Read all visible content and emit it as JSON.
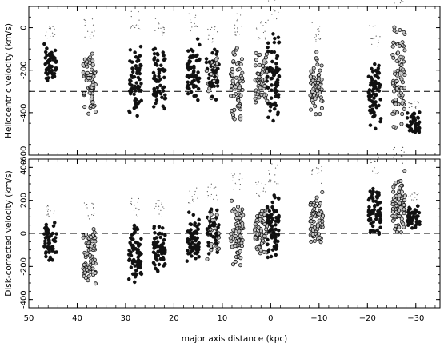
{
  "chart_data": [
    {
      "type": "scatter",
      "panel": "top",
      "ylabel": "Heliocentric velocity (km/s)",
      "xlim": [
        50,
        -35
      ],
      "ylim": [
        -600,
        100
      ],
      "y_ticks": [
        0,
        -200,
        -400,
        -600
      ],
      "y_tick_labels": [
        "0",
        "-200",
        "-400",
        "-600"
      ],
      "reference_line": {
        "y": -300,
        "style": "dashed"
      },
      "groups": [
        {
          "x": 45.5,
          "y_range": [
            -300,
            -50
          ],
          "marker": "filled"
        },
        {
          "x": 37.5,
          "y_range": [
            -450,
            -50
          ],
          "marker": "open"
        },
        {
          "x": 28.0,
          "y_range": [
            -470,
            -30
          ],
          "marker": "filled"
        },
        {
          "x": 23.0,
          "y_range": [
            -430,
            -50
          ],
          "marker": "filled"
        },
        {
          "x": 16.0,
          "y_range": [
            -380,
            -20
          ],
          "marker": "filled"
        },
        {
          "x": 12.0,
          "y_range": [
            -370,
            -70
          ],
          "marker": "mixed"
        },
        {
          "x": 7.0,
          "y_range": [
            -480,
            -40
          ],
          "marker": "open"
        },
        {
          "x": 2.0,
          "y_range": [
            -420,
            -60
          ],
          "marker": "open"
        },
        {
          "x": -0.5,
          "y_range": [
            -520,
            30
          ],
          "marker": "filled"
        },
        {
          "x": -9.5,
          "y_range": [
            -470,
            -70
          ],
          "marker": "open"
        },
        {
          "x": -21.5,
          "y_range": [
            -560,
            -100
          ],
          "marker": "filled"
        },
        {
          "x": -26.5,
          "y_range": [
            -540,
            80
          ],
          "marker": "open"
        },
        {
          "x": -29.5,
          "y_range": [
            -520,
            -380
          ],
          "marker": "filled"
        }
      ]
    },
    {
      "type": "scatter",
      "panel": "bottom",
      "ylabel": "Disk-corrected velocity (km/s)",
      "xlabel": "major axis distance (kpc)",
      "xlim": [
        50,
        -35
      ],
      "ylim": [
        -450,
        450
      ],
      "x_ticks": [
        50,
        40,
        30,
        20,
        10,
        0,
        -10,
        -20,
        -30
      ],
      "x_tick_labels": [
        "50",
        "40",
        "30",
        "20",
        "10",
        "0",
        "−10",
        "−20",
        "−30"
      ],
      "y_ticks": [
        400,
        200,
        0,
        -200,
        -400
      ],
      "y_tick_labels": [
        "400",
        "200",
        "0",
        "-200",
        "-400"
      ],
      "reference_line": {
        "y": 0,
        "style": "dashed"
      },
      "groups": [
        {
          "x": 45.5,
          "y_range": [
            -200,
            100
          ],
          "marker": "filled"
        },
        {
          "x": 37.5,
          "y_range": [
            -350,
            80
          ],
          "marker": "open"
        },
        {
          "x": 28.0,
          "y_range": [
            -370,
            100
          ],
          "marker": "filled"
        },
        {
          "x": 23.0,
          "y_range": [
            -300,
            100
          ],
          "marker": "filled"
        },
        {
          "x": 16.0,
          "y_range": [
            -220,
            180
          ],
          "marker": "filled"
        },
        {
          "x": 12.0,
          "y_range": [
            -200,
            200
          ],
          "marker": "mixed"
        },
        {
          "x": 7.0,
          "y_range": [
            -240,
            250
          ],
          "marker": "open"
        },
        {
          "x": 2.0,
          "y_range": [
            -180,
            220
          ],
          "marker": "open"
        },
        {
          "x": -0.5,
          "y_range": [
            -230,
            300
          ],
          "marker": "filled"
        },
        {
          "x": -9.5,
          "y_range": [
            -120,
            300
          ],
          "marker": "open"
        },
        {
          "x": -21.5,
          "y_range": [
            -100,
            360
          ],
          "marker": "filled"
        },
        {
          "x": -26.5,
          "y_range": [
            -50,
            420
          ],
          "marker": "open"
        },
        {
          "x": -29.5,
          "y_range": [
            0,
            200
          ],
          "marker": "filled"
        }
      ]
    }
  ]
}
